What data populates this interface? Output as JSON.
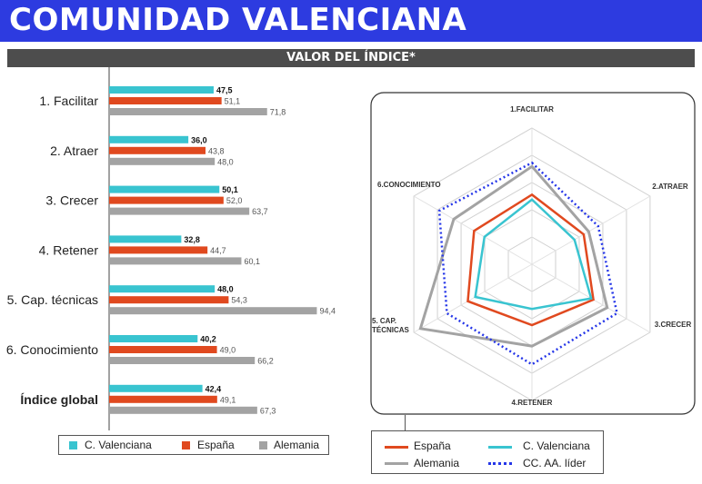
{
  "header": {
    "title": "COMUNIDAD VALENCIANA",
    "subtitle": "VALOR DEL ÍNDICE*"
  },
  "colors": {
    "title_bg": "#2d3be0",
    "subtitle_bg": "#4d4d4d",
    "cvalenciana": "#39c4d0",
    "espana": "#e0491f",
    "alemania": "#a3a3a3",
    "lider": "#2536e8"
  },
  "chart_data": [
    {
      "type": "bar",
      "orientation": "horizontal",
      "categories": [
        "1. Facilitar",
        "2. Atraer",
        "3. Crecer",
        "4. Retener",
        "5. Cap. técnicas",
        "6. Conocimiento",
        "Índice global"
      ],
      "series": [
        {
          "name": "C. Valenciana",
          "value_labels": [
            "47,5",
            "36,0",
            "50,1",
            "32,8",
            "48,0",
            "40,2",
            "42,4"
          ],
          "values": [
            47.5,
            36.0,
            50.1,
            32.8,
            48.0,
            40.2,
            42.4
          ]
        },
        {
          "name": "España",
          "value_labels": [
            "51,1",
            "43,8",
            "52,0",
            "44,7",
            "54,3",
            "49,0",
            "49,1"
          ],
          "values": [
            51.1,
            43.8,
            52.0,
            44.7,
            54.3,
            49.0,
            49.1
          ]
        },
        {
          "name": "Alemania",
          "value_labels": [
            "71,8",
            "48,0",
            "63,7",
            "60,1",
            "94,4",
            "66,2",
            "67,3"
          ],
          "values": [
            71.8,
            48.0,
            63.7,
            60.1,
            94.4,
            66.2,
            67.3
          ]
        }
      ],
      "xlim": [
        0,
        100
      ],
      "legend": [
        "C. Valenciana",
        "España",
        "Alemania"
      ],
      "legend_position": "bottom"
    },
    {
      "type": "radar",
      "axes": [
        "1.FACILITAR",
        "2.ATRAER",
        "3.CRECER",
        "4.RETENER",
        "5. CAP. TÉCNICAS",
        "6.CONOCIMIENTO"
      ],
      "rlim": [
        0,
        100
      ],
      "grid_rings": 5,
      "series": [
        {
          "name": "España",
          "values": [
            51.1,
            43.8,
            52.0,
            44.7,
            54.3,
            49.0
          ]
        },
        {
          "name": "C. Valenciana",
          "values": [
            47.5,
            36.0,
            50.1,
            32.8,
            48.0,
            40.2
          ]
        },
        {
          "name": "Alemania",
          "values": [
            71.8,
            48.0,
            63.7,
            60.1,
            94.4,
            66.2
          ]
        },
        {
          "name": "CC. AA. líder",
          "values": [
            74.5,
            56.0,
            72.0,
            73.5,
            72.0,
            78.5
          ]
        }
      ],
      "legend": [
        "España",
        "C. Valenciana",
        "Alemania",
        "CC. AA. líder"
      ],
      "legend_position": "bottom"
    }
  ]
}
